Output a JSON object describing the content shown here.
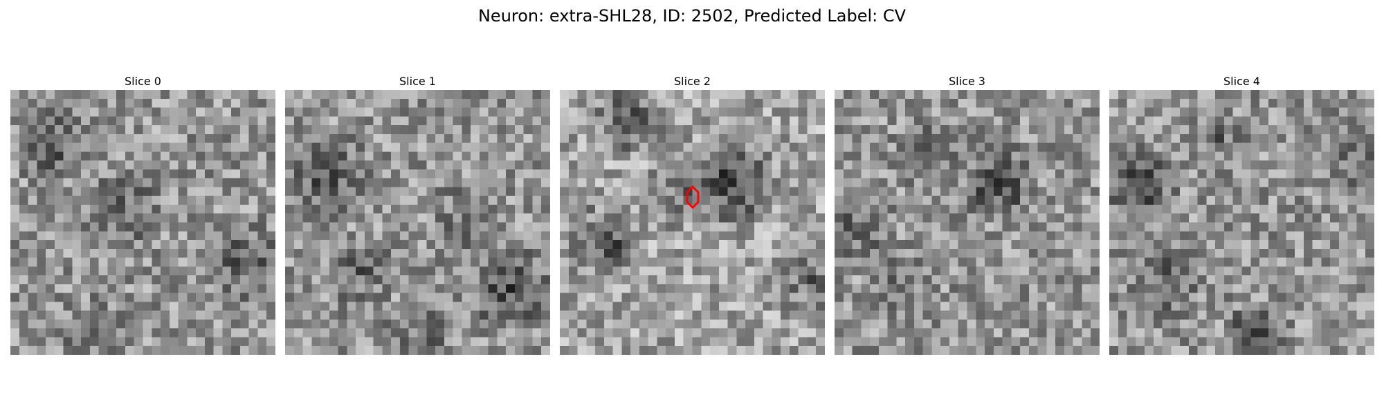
{
  "figure": {
    "suptitle": "Neuron: extra-SHL28, ID: 2502, Predicted Label: CV"
  },
  "panels": [
    {
      "title": "Slice 0"
    },
    {
      "title": "Slice 1"
    },
    {
      "title": "Slice 2"
    },
    {
      "title": "Slice 3"
    },
    {
      "title": "Slice 4"
    }
  ],
  "style": {
    "marker_color": "#ff0000",
    "colormap": "gray"
  }
}
